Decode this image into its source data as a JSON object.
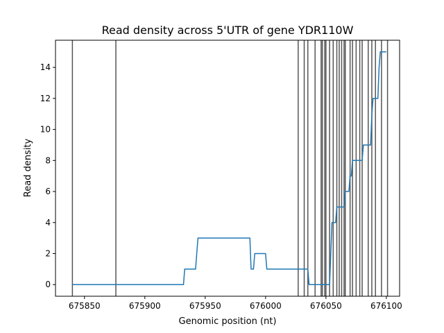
{
  "chart_data": {
    "type": "line",
    "title": "Read density across 5'UTR of gene YDR110W",
    "xlabel": "Genomic position (nt)",
    "ylabel": "Read density",
    "xlim": [
      675826,
      676111
    ],
    "ylim": [
      -0.75,
      15.75
    ],
    "xticks": [
      675850,
      675900,
      675950,
      676000,
      676050,
      676100
    ],
    "xtick_labels": [
      "675850",
      "675900",
      "675950",
      "676000",
      "676050",
      "676100"
    ],
    "yticks": [
      0,
      2,
      4,
      6,
      8,
      10,
      12,
      14
    ],
    "ytick_labels": [
      "0",
      "2",
      "4",
      "6",
      "8",
      "10",
      "12",
      "14"
    ],
    "series": [
      {
        "name": "read density",
        "color": "#1f77b4",
        "x": [
          675840,
          675932,
          675933,
          675942,
          675943,
          675944,
          675987,
          675988,
          675990,
          675991,
          675992,
          676000,
          676001,
          676002,
          676035,
          676036,
          676053,
          676054,
          676055,
          676058,
          676059,
          676062,
          676063,
          676065,
          676066,
          676067,
          676069,
          676070,
          676071,
          676072,
          676073,
          676074,
          676080,
          676081,
          676082,
          676087,
          676088,
          676089,
          676090,
          676091,
          676093,
          676094,
          676095,
          676100
        ],
        "y": [
          0,
          0,
          1,
          1,
          2,
          3,
          3,
          1,
          1,
          2,
          2,
          2,
          1,
          1,
          1,
          0,
          0,
          2,
          4,
          4,
          5,
          5,
          5,
          5,
          6,
          6,
          6,
          7,
          7,
          8,
          8,
          8,
          8,
          9,
          9,
          9,
          11,
          12,
          12,
          12,
          12,
          14,
          15,
          15
        ]
      }
    ],
    "vlines": [
      675840,
      675876,
      676027,
      676032,
      676035,
      676041,
      676046,
      676047,
      676049,
      676050,
      676053,
      676056,
      676059,
      676061,
      676063,
      676065,
      676066,
      676070,
      676072,
      676075,
      676078,
      676080,
      676085,
      676088,
      676091,
      676096,
      676101
    ],
    "vline_color": "#555555"
  }
}
